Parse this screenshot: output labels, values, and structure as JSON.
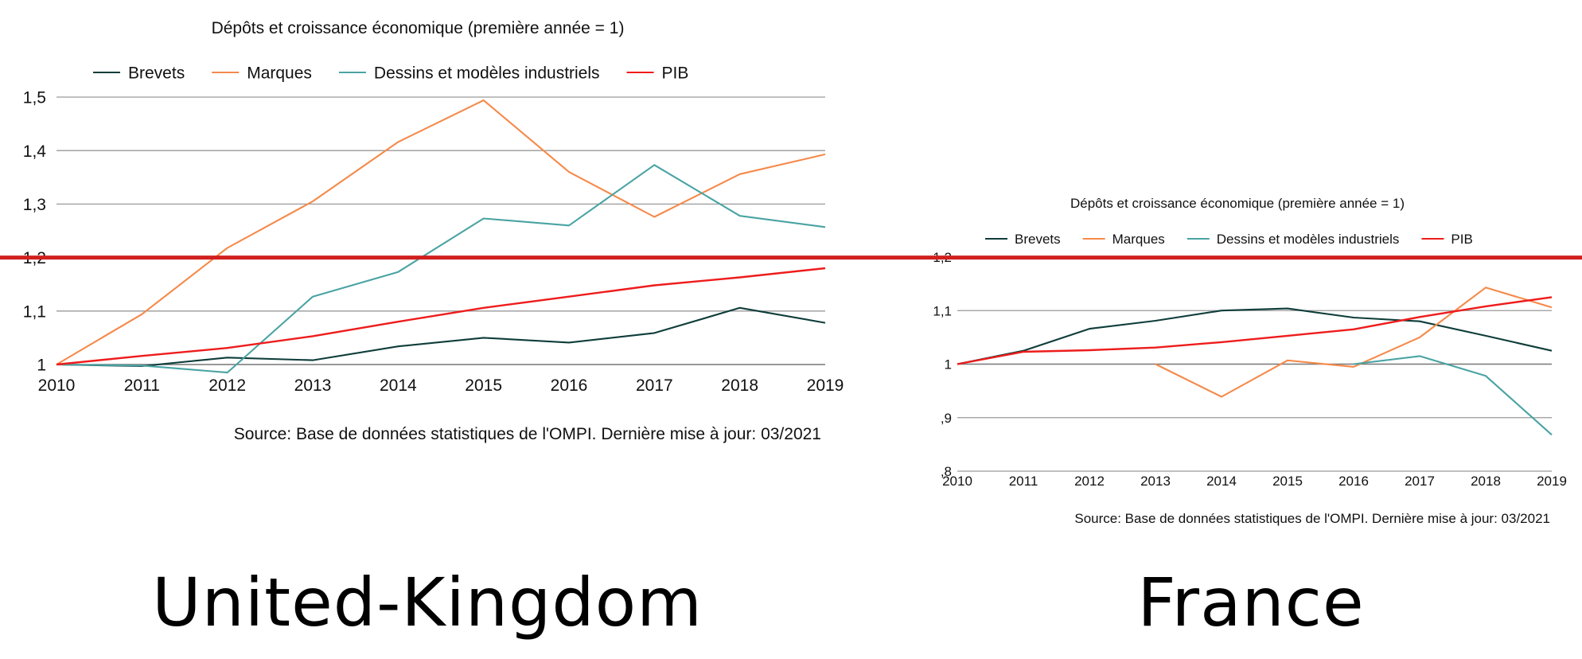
{
  "colors": {
    "Brevets": "#0e3d3a",
    "Marques": "#f58a4a",
    "Dessins et modèles industriels": "#4aa3a3",
    "PIB": "#ee1c1c",
    "grid": "#9a9a9a",
    "reference_line": "#d11f1f"
  },
  "reference_line": {
    "value": 1.2,
    "span": "both charts"
  },
  "labels": {
    "uk": "United-Kingdom",
    "fr": "France"
  },
  "chart_data": [
    {
      "id": "uk",
      "type": "line",
      "title": "Dépôts et croissance économique (première année = 1)",
      "source": "Source: Base de données statistiques de l'OMPI.  Dernière mise à jour: 03/2021",
      "xlabel": "",
      "ylabel": "",
      "legend_position": "top",
      "grid": true,
      "x": [
        "2010",
        "2011",
        "2012",
        "2013",
        "2014",
        "2015",
        "2016",
        "2017",
        "2018",
        "2019"
      ],
      "ylim": [
        1,
        1.5
      ],
      "yticks": [
        1,
        1.1,
        1.2,
        1.3,
        1.4,
        1.5
      ],
      "ytick_labels": [
        "1",
        "1,1",
        "1,2",
        "1,3",
        "1,4",
        "1,5"
      ],
      "series": [
        {
          "name": "Brevets",
          "values": [
            1,
            0.997,
            1.013,
            1.008,
            1.034,
            1.05,
            1.041,
            1.059,
            1.106,
            1.078
          ]
        },
        {
          "name": "Marques",
          "values": [
            1,
            1.094,
            1.218,
            1.305,
            1.416,
            1.494,
            1.36,
            1.276,
            1.356,
            1.393
          ]
        },
        {
          "name": "Dessins et modèles industriels",
          "values": [
            1,
            0.998,
            0.985,
            1.127,
            1.173,
            1.273,
            1.26,
            1.373,
            1.278,
            1.257
          ]
        },
        {
          "name": "PIB",
          "values": [
            1,
            1.016,
            1.031,
            1.053,
            1.08,
            1.106,
            1.127,
            1.148,
            1.163,
            1.18
          ]
        }
      ]
    },
    {
      "id": "fr",
      "type": "line",
      "title": "Dépôts et croissance économique (première année = 1)",
      "source": "Source: Base de données statistiques de l'OMPI.  Dernière mise à jour: 03/2021",
      "xlabel": "",
      "ylabel": "",
      "legend_position": "top",
      "grid": true,
      "x": [
        "2010",
        "2011",
        "2012",
        "2013",
        "2014",
        "2015",
        "2016",
        "2017",
        "2018",
        "2019"
      ],
      "ylim": [
        0.8,
        1.2
      ],
      "yticks": [
        0.8,
        0.9,
        1,
        1.1,
        1.2
      ],
      "ytick_labels": [
        ",8",
        ",9",
        "1",
        "1,1",
        "1,2"
      ],
      "series": [
        {
          "name": "Brevets",
          "values": [
            1,
            1.025,
            1.066,
            1.081,
            1.1,
            1.104,
            1.087,
            1.08,
            1.053,
            1.025
          ]
        },
        {
          "name": "Marques",
          "values": [
            null,
            null,
            null,
            1,
            0.939,
            1.007,
            0.995,
            1.05,
            1.143,
            1.106
          ]
        },
        {
          "name": "Dessins et modèles industriels",
          "values": [
            null,
            null,
            null,
            null,
            null,
            null,
            1,
            1.015,
            0.978,
            0.868
          ]
        },
        {
          "name": "PIB",
          "values": [
            1,
            1.023,
            1.026,
            1.031,
            1.041,
            1.053,
            1.065,
            1.088,
            1.108,
            1.125
          ]
        }
      ]
    }
  ]
}
